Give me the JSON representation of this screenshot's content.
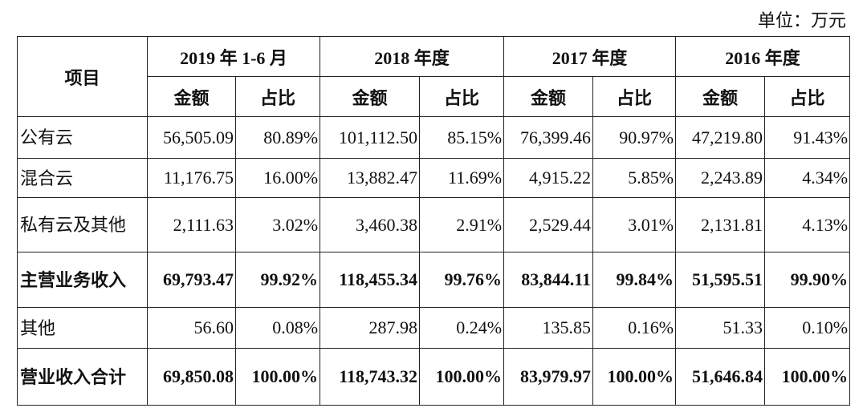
{
  "unit": "单位：万元",
  "table": {
    "corner": "项目",
    "periods": [
      "2019 年 1-6 月",
      "2018 年度",
      "2017 年度",
      "2016 年度"
    ],
    "subheaders": [
      "金额",
      "占比",
      "金额",
      "占比",
      "金额",
      "占比",
      "金额",
      "占比"
    ],
    "rows": [
      [
        "公有云",
        "56,505.09",
        "80.89%",
        "101,112.50",
        "85.15%",
        "76,399.46",
        "90.97%",
        "47,219.80",
        "91.43%"
      ],
      [
        "混合云",
        "11,176.75",
        "16.00%",
        "13,882.47",
        "11.69%",
        "4,915.22",
        "5.85%",
        "2,243.89",
        "4.34%"
      ],
      [
        "私有云及其他",
        "2,111.63",
        "3.02%",
        "3,460.38",
        "2.91%",
        "2,529.44",
        "3.01%",
        "2,131.81",
        "4.13%"
      ],
      [
        "主营业务收入",
        "69,793.47",
        "99.92%",
        "118,455.34",
        "99.76%",
        "83,844.11",
        "99.84%",
        "51,595.51",
        "99.90%"
      ],
      [
        "其他",
        "56.60",
        "0.08%",
        "287.98",
        "0.24%",
        "135.85",
        "0.16%",
        "51.33",
        "0.10%"
      ],
      [
        "营业收入合计",
        "69,850.08",
        "100.00%",
        "118,743.32",
        "100.00%",
        "83,979.97",
        "100.00%",
        "51,646.84",
        "100.00%"
      ]
    ],
    "bold_rows": [
      3,
      5
    ]
  }
}
